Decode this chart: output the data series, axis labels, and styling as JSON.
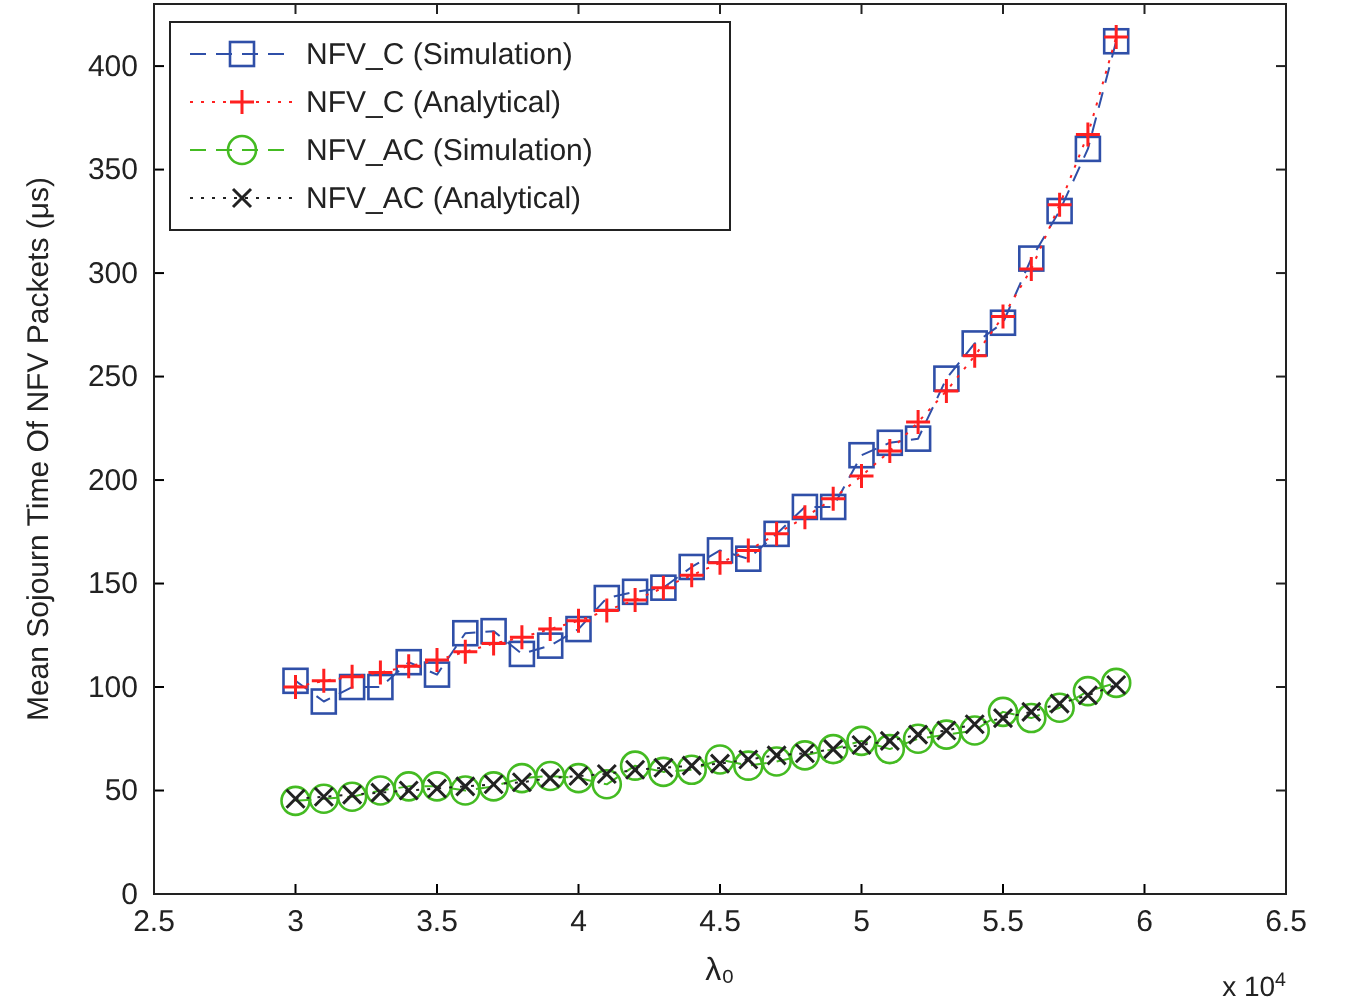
{
  "chart_data": {
    "type": "line",
    "xlabel": "λ₀",
    "ylabel": "Mean Sojourn Time Of NFV Packets (μs)",
    "x": [
      3.0,
      3.1,
      3.2,
      3.3,
      3.4,
      3.5,
      3.6,
      3.7,
      3.8,
      3.9,
      4.0,
      4.1,
      4.2,
      4.3,
      4.4,
      4.5,
      4.6,
      4.7,
      4.8,
      4.9,
      5.0,
      5.1,
      5.2,
      5.3,
      5.4,
      5.5,
      5.6,
      5.7,
      5.8,
      5.9
    ],
    "series": [
      {
        "name": "NFV_C (Simulation)",
        "color": "#2f4fa8",
        "marker": "square",
        "line_style": "dashed",
        "values": [
          103,
          93,
          100,
          100,
          112,
          106,
          126,
          127,
          116,
          120,
          128,
          143,
          146,
          148,
          158,
          166,
          162,
          174,
          187,
          187,
          212,
          218,
          220,
          249,
          266,
          276,
          307,
          330,
          360,
          412
        ]
      },
      {
        "name": "NFV_C (Analytical)",
        "color": "#ff2020",
        "marker": "plus",
        "line_style": "dotted",
        "values": [
          100,
          103,
          105,
          107,
          110,
          113,
          117,
          121,
          124,
          128,
          132,
          137,
          142,
          148,
          154,
          160,
          166,
          174,
          182,
          191,
          202,
          214,
          228,
          243,
          260,
          279,
          302,
          333,
          367,
          414
        ]
      },
      {
        "name": "NFV_AC (Simulation)",
        "color": "#44bb22",
        "marker": "circle",
        "line_style": "dashed",
        "values": [
          45,
          46,
          47,
          50,
          52,
          52,
          50,
          52,
          56,
          57,
          56,
          53,
          62,
          59,
          60,
          65,
          62,
          64,
          67,
          70,
          74,
          70,
          75,
          77,
          79,
          88,
          85,
          90,
          98,
          102
        ]
      },
      {
        "name": "NFV_AC (Analytical)",
        "color": "#222222",
        "marker": "cross",
        "line_style": "dotted",
        "values": [
          46,
          47,
          48,
          49,
          50,
          51,
          52,
          53,
          54,
          56,
          57,
          58,
          60,
          61,
          62,
          63,
          65,
          67,
          68,
          70,
          72,
          74,
          77,
          79,
          82,
          85,
          88,
          92,
          96,
          101
        ]
      }
    ],
    "xlim": [
      2.5,
      6.5
    ],
    "xticks": [
      2.5,
      3,
      3.5,
      4,
      4.5,
      5,
      5.5,
      6,
      6.5
    ],
    "ylim": [
      0,
      430
    ],
    "yticks": [
      0,
      50,
      100,
      150,
      200,
      250,
      300,
      350,
      400
    ],
    "annotations": [
      "x 10$^{4}$"
    ],
    "legend": "top left",
    "grid": false
  }
}
